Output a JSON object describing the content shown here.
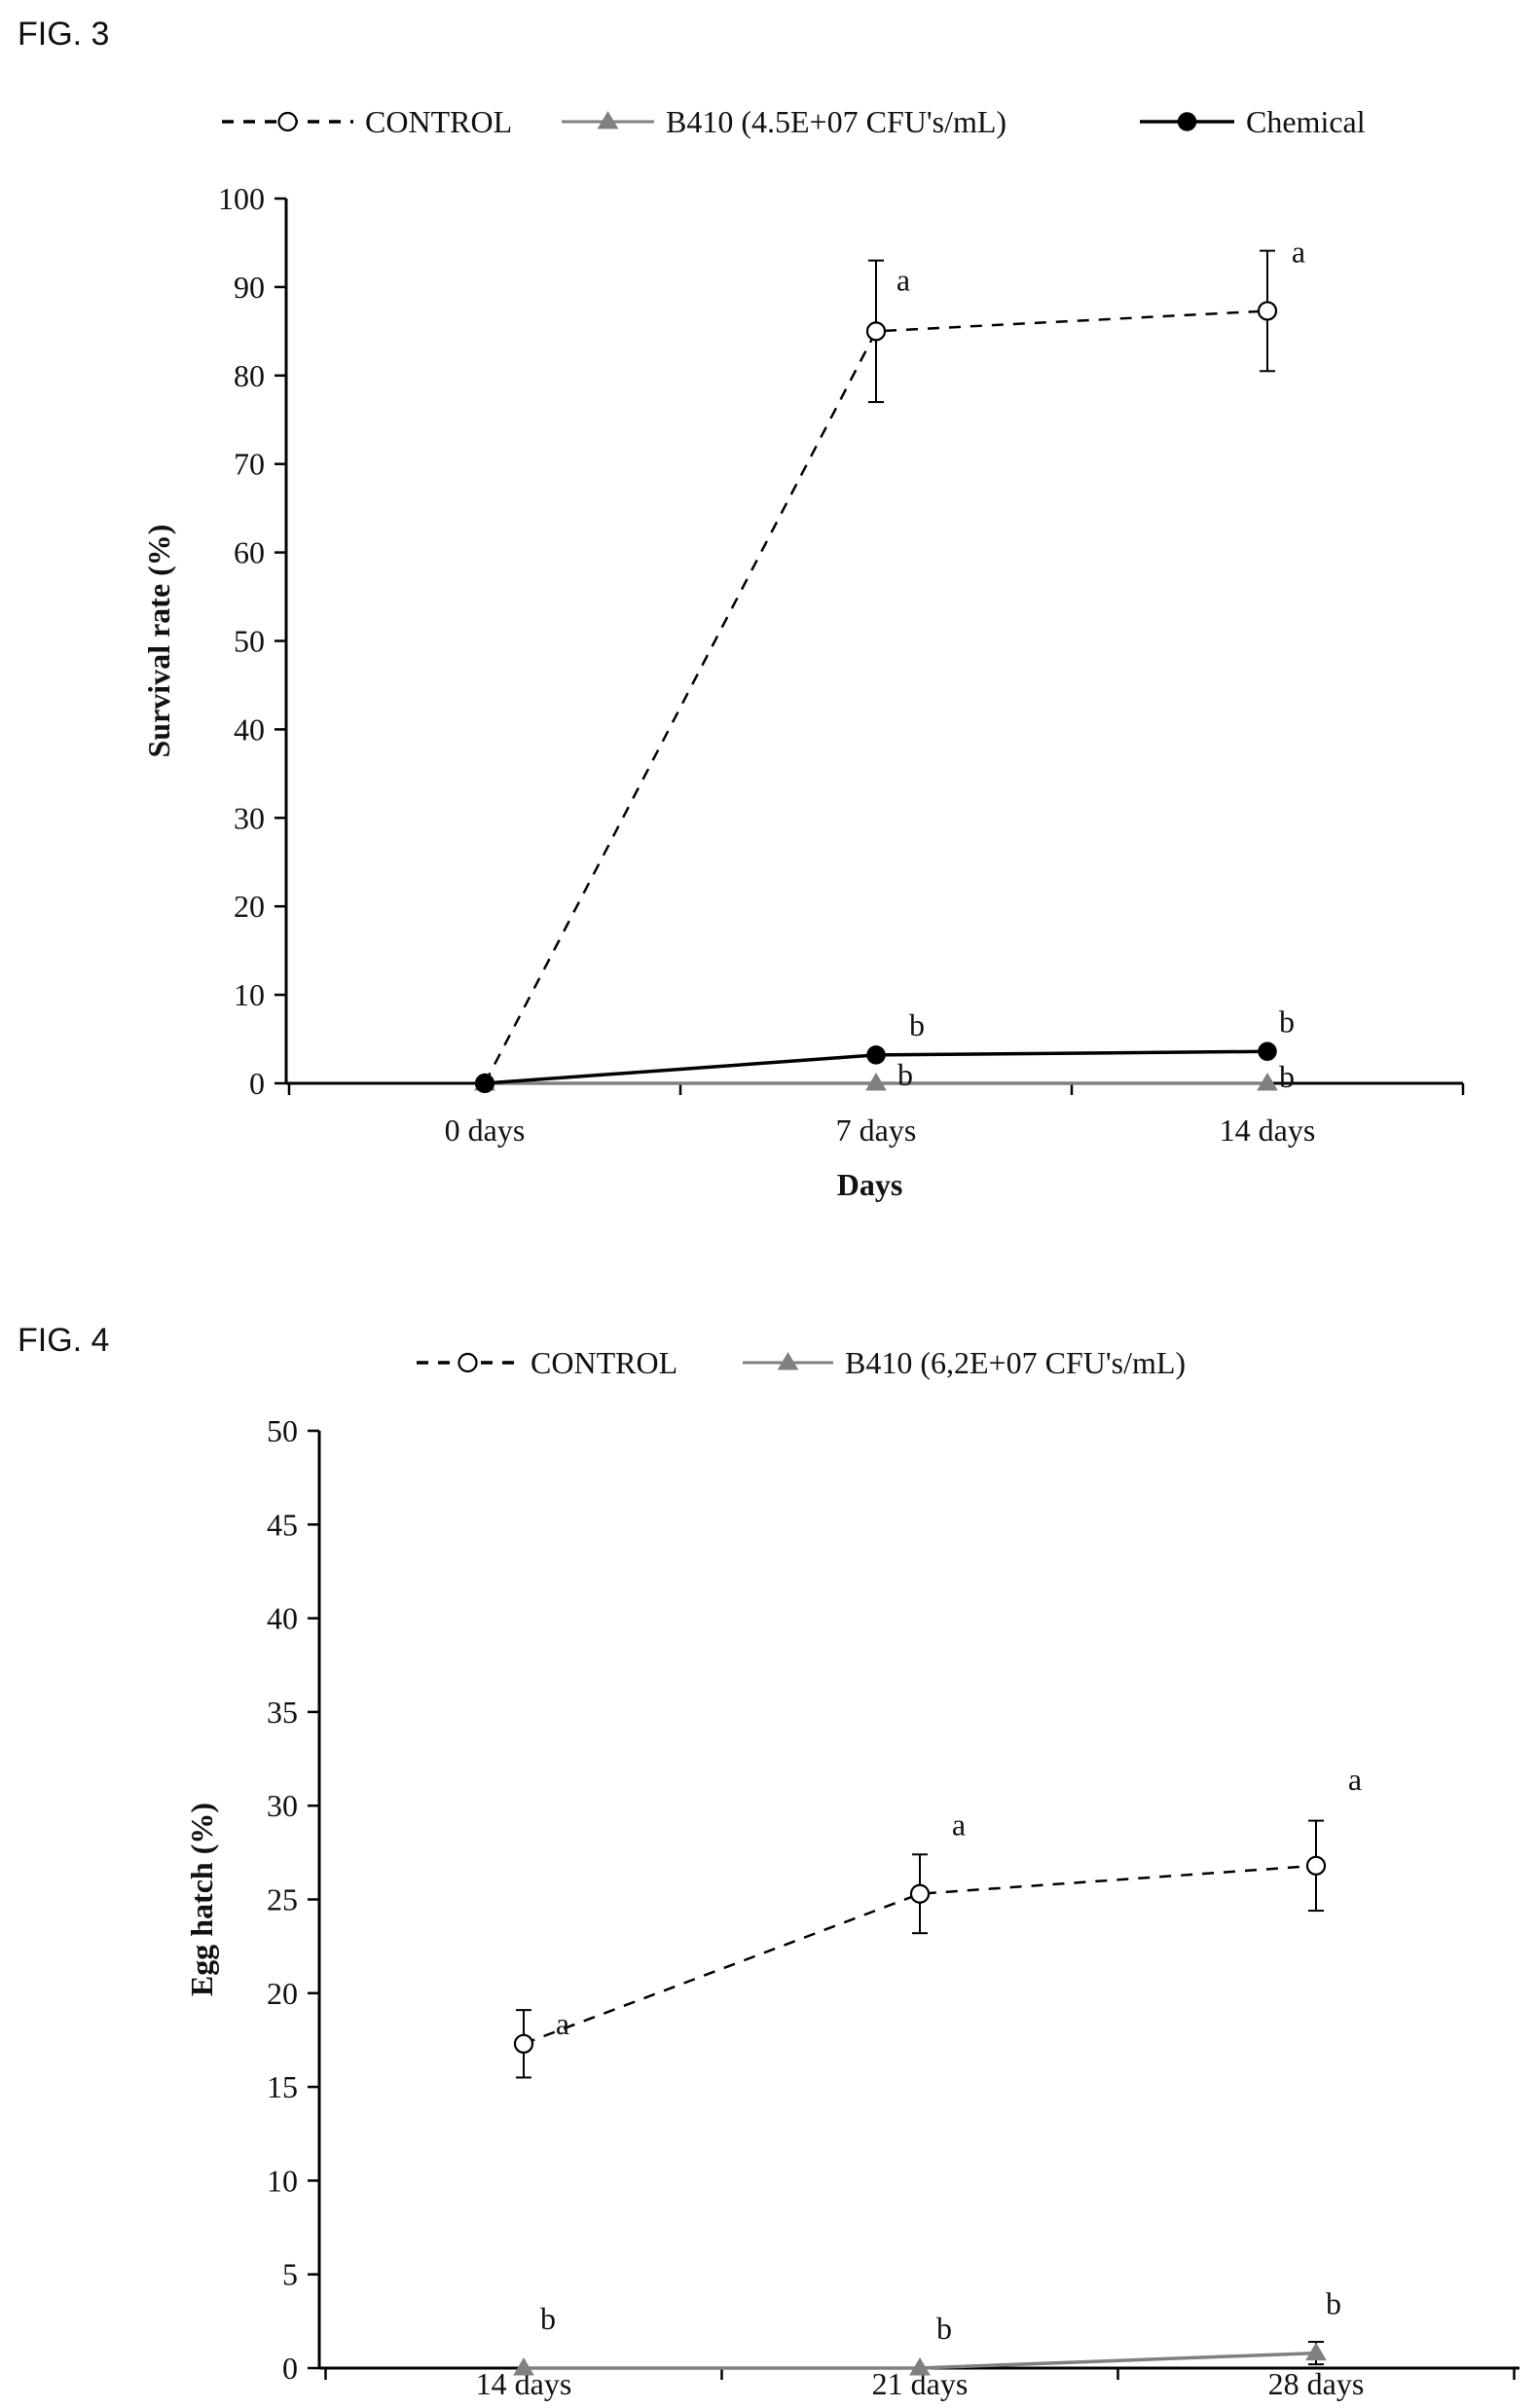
{
  "figures": [
    {
      "label": "FIG. 3"
    },
    {
      "label": "FIG. 4"
    }
  ],
  "chart_data": [
    {
      "type": "line",
      "categories": [
        "0 days",
        "7 days",
        "14 days"
      ],
      "xlabel": "Days",
      "ylabel": "Survival rate (%)",
      "ylim": [
        0,
        100
      ],
      "yticks": [
        0,
        10,
        20,
        30,
        40,
        50,
        60,
        70,
        80,
        90,
        100
      ],
      "legend_position": "top",
      "series": [
        {
          "name": "CONTROL",
          "style": "dashed",
          "marker": "open-circle",
          "color": "#000000",
          "values": [
            0,
            85,
            87.3
          ],
          "error": [
            null,
            8,
            6.8
          ],
          "letters": [
            "",
            "a",
            "a"
          ]
        },
        {
          "name": "B410 (4.5E+07 CFU's/mL)",
          "style": "solid",
          "marker": "triangle",
          "color": "#808080",
          "values": [
            0,
            0,
            0
          ],
          "error": [
            null,
            null,
            null
          ],
          "letters": [
            "",
            "b",
            "b"
          ]
        },
        {
          "name": "Chemical",
          "style": "solid",
          "marker": "filled-circle",
          "color": "#000000",
          "values": [
            0,
            3.2,
            3.6
          ],
          "error": [
            null,
            null,
            null
          ],
          "letters": [
            "",
            "b",
            "b"
          ]
        }
      ]
    },
    {
      "type": "line",
      "categories": [
        "14 days",
        "21 days",
        "28 days"
      ],
      "xlabel": "",
      "ylabel": "Egg hatch (%)",
      "ylim": [
        0,
        50
      ],
      "yticks": [
        0,
        5,
        10,
        15,
        20,
        25,
        30,
        35,
        40,
        45,
        50
      ],
      "legend_position": "top",
      "series": [
        {
          "name": "CONTROL",
          "style": "dashed",
          "marker": "open-circle",
          "color": "#000000",
          "values": [
            17.3,
            25.3,
            26.8
          ],
          "error": [
            1.8,
            2.1,
            2.4
          ],
          "letters": [
            "a",
            "a",
            "a"
          ]
        },
        {
          "name": "B410 (6,2E+07 CFU's/mL)",
          "style": "solid",
          "marker": "triangle",
          "color": "#808080",
          "values": [
            0,
            0,
            0.8
          ],
          "error": [
            null,
            null,
            0.6
          ],
          "letters": [
            "b",
            "b",
            "b"
          ]
        }
      ]
    }
  ]
}
